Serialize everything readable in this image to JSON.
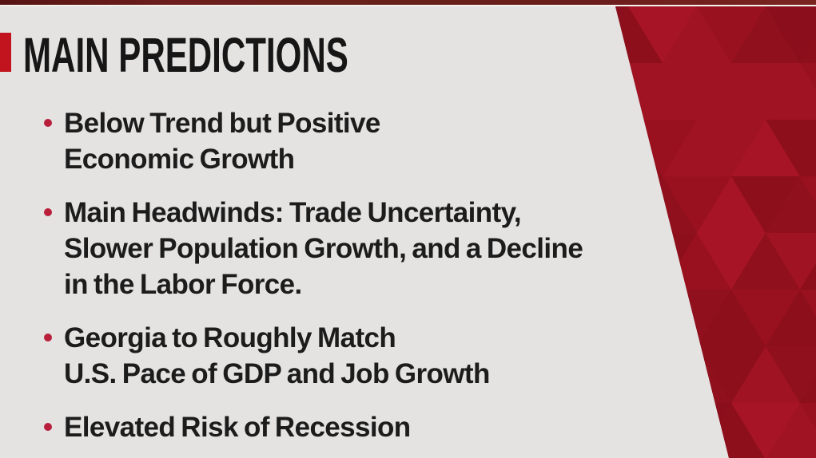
{
  "slide": {
    "title": "MAIN PREDICTIONS",
    "bullets": [
      {
        "lines": [
          "Below Trend but Positive",
          "Economic Growth"
        ]
      },
      {
        "lines": [
          "Main Headwinds: Trade Uncertainty,",
          "Slower Population Growth, and a Decline",
          "in the Labor Force."
        ]
      },
      {
        "lines": [
          "Georgia to Roughly Match",
          "U.S. Pace of GDP and Job Growth"
        ]
      },
      {
        "lines": [
          "Elevated Risk of Recession"
        ]
      }
    ]
  },
  "theme": {
    "background": "#e4e3e2",
    "title_color": "#161616",
    "body_color": "#1c1c1c",
    "accent_red": "#c2141f",
    "bullet_dot_red": "#b91e3a",
    "top_strip_maroon": "#6b1d1b",
    "pattern_base": "#98111f",
    "pattern_shades": [
      "#8a0e1b",
      "#90101e",
      "#99111f",
      "#a01322",
      "#a61425",
      "#8d0f1c"
    ]
  }
}
